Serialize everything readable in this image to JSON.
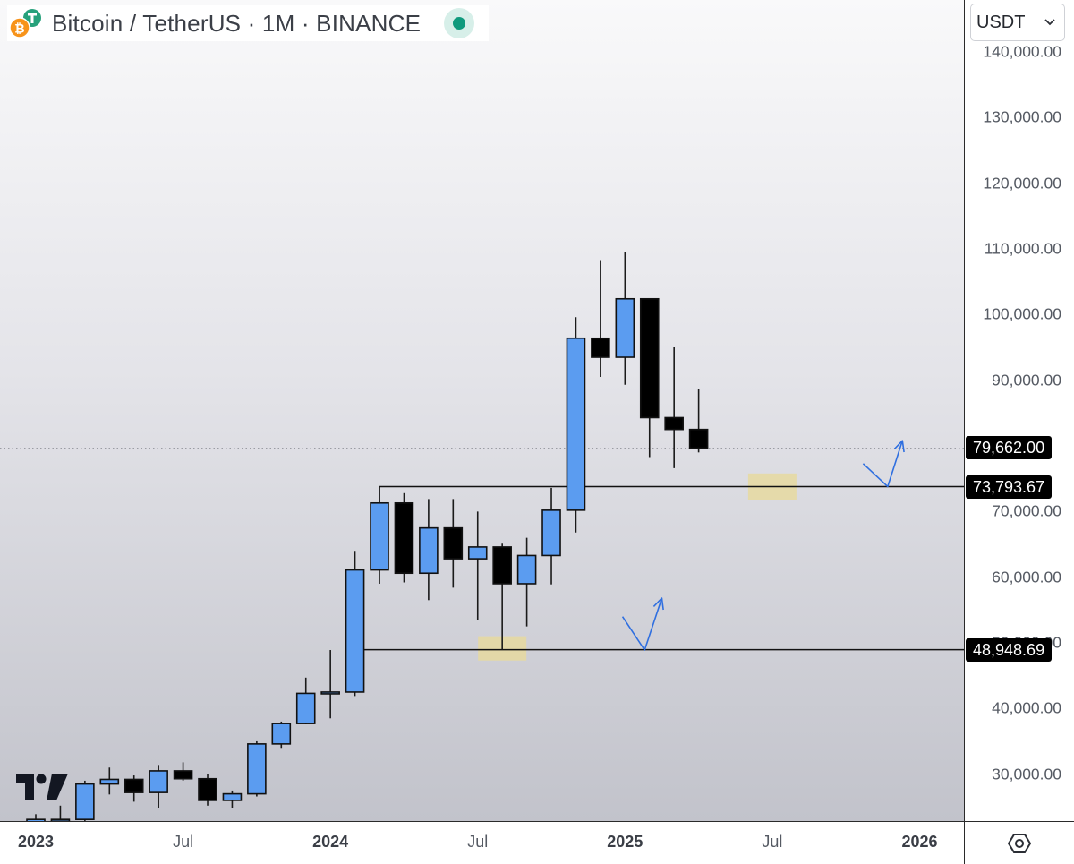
{
  "header": {
    "title": "Bitcoin / TetherUS · 1M · BINANCE",
    "currency": "USDT",
    "status_color": "#0f9a7d"
  },
  "icons": {
    "base_coin": "bitcoin-icon",
    "quote_coin": "tether-icon",
    "logo": "tradingview-logo-icon",
    "settings": "hexagon-settings-icon",
    "dropdown": "chevron-down-icon"
  },
  "colors": {
    "up": "#5b9cf0",
    "down": "#000000",
    "wick": "#1a1a1a",
    "zone": "#e6d9a0",
    "arrow": "#2f6fe0"
  },
  "price_tags": [
    {
      "value": 79662,
      "label": "79,662.00"
    },
    {
      "value": 73793.67,
      "label": "73,793.67"
    },
    {
      "value": 48948.69,
      "label": "48,948.69"
    }
  ],
  "chart_data": {
    "type": "candlestick",
    "timeframe": "1M",
    "y_ticks": [
      "30,000.00",
      "40,000.00",
      "50,000.00",
      "60,000.00",
      "70,000.00",
      "90,000.00",
      "100,000.00",
      "110,000.00",
      "120,000.00",
      "130,000.00",
      "140,000.00"
    ],
    "y_tick_values": [
      30000,
      40000,
      50000,
      60000,
      70000,
      90000,
      100000,
      110000,
      120000,
      130000,
      140000
    ],
    "x_ticks": [
      {
        "label": "2023",
        "bold": true,
        "month_index": 0
      },
      {
        "label": "Jul",
        "bold": false,
        "month_index": 6
      },
      {
        "label": "2024",
        "bold": true,
        "month_index": 12
      },
      {
        "label": "Jul",
        "bold": false,
        "month_index": 18
      },
      {
        "label": "2025",
        "bold": true,
        "month_index": 24
      },
      {
        "label": "Jul",
        "bold": false,
        "month_index": 30
      },
      {
        "label": "2026",
        "bold": true,
        "month_index": 36
      }
    ],
    "candles": [
      {
        "month": "2023-01",
        "o": 16500,
        "h": 23900,
        "l": 16500,
        "c": 23100
      },
      {
        "month": "2023-02",
        "o": 23100,
        "h": 25200,
        "l": 21400,
        "c": 23100
      },
      {
        "month": "2023-03",
        "o": 23100,
        "h": 29000,
        "l": 19500,
        "c": 28500
      },
      {
        "month": "2023-04",
        "o": 28500,
        "h": 31000,
        "l": 26900,
        "c": 29200
      },
      {
        "month": "2023-05",
        "o": 29200,
        "h": 29800,
        "l": 25800,
        "c": 27200
      },
      {
        "month": "2023-06",
        "o": 27200,
        "h": 31400,
        "l": 24800,
        "c": 30500
      },
      {
        "month": "2023-07",
        "o": 30500,
        "h": 31800,
        "l": 29000,
        "c": 29300
      },
      {
        "month": "2023-08",
        "o": 29300,
        "h": 30000,
        "l": 25200,
        "c": 26000
      },
      {
        "month": "2023-09",
        "o": 26000,
        "h": 27500,
        "l": 24900,
        "c": 27000
      },
      {
        "month": "2023-10",
        "o": 27000,
        "h": 35000,
        "l": 26600,
        "c": 34600
      },
      {
        "month": "2023-11",
        "o": 34600,
        "h": 38000,
        "l": 34000,
        "c": 37700
      },
      {
        "month": "2023-12",
        "o": 37700,
        "h": 44700,
        "l": 37600,
        "c": 42300
      },
      {
        "month": "2024-01",
        "o": 42300,
        "h": 48900,
        "l": 38500,
        "c": 42500
      },
      {
        "month": "2024-02",
        "o": 42500,
        "h": 64000,
        "l": 41900,
        "c": 61100
      },
      {
        "month": "2024-03",
        "o": 61100,
        "h": 73800,
        "l": 59000,
        "c": 71300
      },
      {
        "month": "2024-04",
        "o": 71300,
        "h": 72800,
        "l": 59200,
        "c": 60600
      },
      {
        "month": "2024-05",
        "o": 60600,
        "h": 71900,
        "l": 56500,
        "c": 67500
      },
      {
        "month": "2024-06",
        "o": 67500,
        "h": 71900,
        "l": 58400,
        "c": 62800
      },
      {
        "month": "2024-07",
        "o": 62800,
        "h": 70000,
        "l": 53500,
        "c": 64600
      },
      {
        "month": "2024-08",
        "o": 64600,
        "h": 65100,
        "l": 49000,
        "c": 59000
      },
      {
        "month": "2024-09",
        "o": 59000,
        "h": 66000,
        "l": 52500,
        "c": 63300
      },
      {
        "month": "2024-10",
        "o": 63300,
        "h": 73600,
        "l": 58900,
        "c": 70200
      },
      {
        "month": "2024-11",
        "o": 70200,
        "h": 99600,
        "l": 66800,
        "c": 96400
      },
      {
        "month": "2024-12",
        "o": 96400,
        "h": 108300,
        "l": 90500,
        "c": 93500
      },
      {
        "month": "2025-01",
        "o": 93500,
        "h": 109600,
        "l": 89300,
        "c": 102400
      },
      {
        "month": "2025-02",
        "o": 102400,
        "h": 102500,
        "l": 78300,
        "c": 84300
      },
      {
        "month": "2025-03",
        "o": 84300,
        "h": 95000,
        "l": 76600,
        "c": 82500
      },
      {
        "month": "2025-04",
        "o": 82500,
        "h": 88600,
        "l": 79000,
        "c": 79662
      }
    ],
    "horizontal_lines": [
      {
        "value": 73793.67,
        "start_month_index": 14
      },
      {
        "value": 48948.69,
        "start_month_index": 13
      }
    ],
    "current_price_line": 79662,
    "zones": [
      {
        "month_index": 19,
        "low": 47300,
        "high": 51000
      },
      {
        "month_index": 30,
        "low": 71700,
        "high": 75800
      }
    ],
    "projection_arrows": [
      {
        "points": [
          [
            23.9,
            54000
          ],
          [
            24.8,
            48900
          ],
          [
            25.5,
            56800
          ]
        ]
      },
      {
        "points": [
          [
            33.7,
            77300
          ],
          [
            34.7,
            73800
          ],
          [
            35.3,
            80800
          ]
        ]
      }
    ]
  }
}
